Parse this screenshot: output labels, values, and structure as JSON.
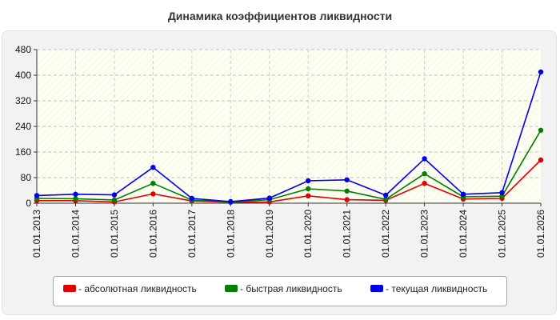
{
  "chart_data": {
    "type": "line",
    "title": "Динамика коэффициентов ликвидности",
    "x": [
      "01.01.2013",
      "01.01.2014",
      "01.01.2015",
      "01.01.2016",
      "01.01.2017",
      "01.01.2018",
      "01.01.2019",
      "01.01.2020",
      "01.01.2021",
      "01.01.2022",
      "01.01.2023",
      "01.01.2024",
      "01.01.2025",
      "01.01.2026"
    ],
    "ylim": [
      0,
      480
    ],
    "yticks": [
      0,
      80,
      160,
      240,
      320,
      400,
      480
    ],
    "grid": true,
    "legend_position": "bottom",
    "series": [
      {
        "name": "- абсолютная ликвидность",
        "color": "#e00000",
        "values": [
          8,
          8,
          4,
          29,
          7,
          3,
          4,
          23,
          11,
          9,
          62,
          13,
          15,
          135
        ]
      },
      {
        "name": "- быстрая ликвидность",
        "color": "#008000",
        "values": [
          15,
          14,
          10,
          62,
          10,
          4,
          11,
          45,
          38,
          12,
          92,
          20,
          22,
          228
        ]
      },
      {
        "name": "- текущая ликвидность",
        "color": "#0000ee",
        "values": [
          24,
          28,
          26,
          112,
          15,
          5,
          16,
          70,
          73,
          25,
          139,
          28,
          33,
          410
        ]
      }
    ]
  }
}
